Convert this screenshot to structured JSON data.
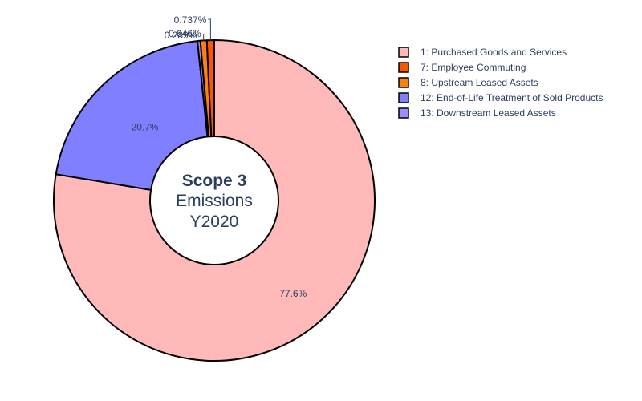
{
  "chart_data": {
    "type": "pie",
    "hole": true,
    "center_text": [
      "Scope 3",
      "Emissions",
      "Y2020"
    ],
    "legend_position": "top-right",
    "slices": [
      {
        "label": "1: Purchased Goods and Services",
        "percent": 77.6,
        "percent_label": "77.6%",
        "color": "#ffb9b9"
      },
      {
        "label": "7: Employee Commuting",
        "percent": 0.737,
        "percent_label": "0.737%",
        "color": "#ff5500"
      },
      {
        "label": "8: Upstream Leased Assets",
        "percent": 0.646,
        "percent_label": "0.646%",
        "color": "#ff7f0e"
      },
      {
        "label": "12: End-of-Life Treatment of Sold Products",
        "percent": 20.7,
        "percent_label": "20.7%",
        "color": "#7f7fff"
      },
      {
        "label": "13: Downstream Leased Assets",
        "percent": 0.289,
        "percent_label": "0.289%",
        "color": "#9d8cff"
      }
    ],
    "draw_order": [
      0,
      3,
      4,
      2,
      1
    ]
  }
}
